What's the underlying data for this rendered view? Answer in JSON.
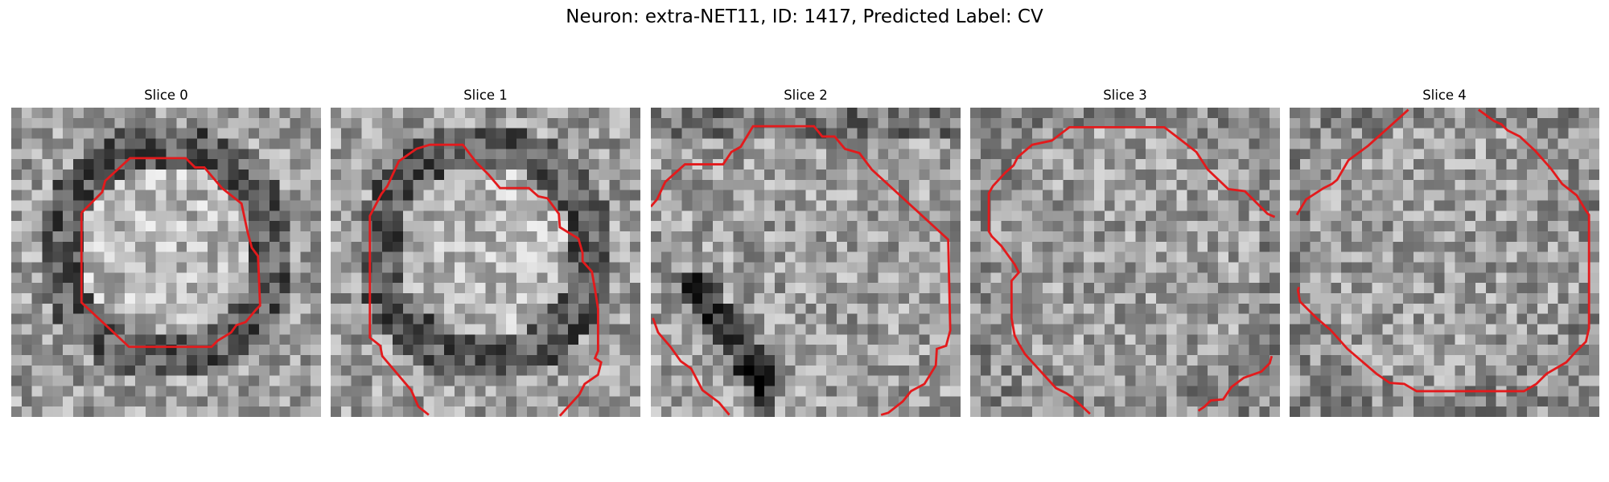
{
  "title": "Neuron: extra-NET11, ID: 1417, Predicted Label: CV",
  "panels": [
    {
      "title": "Slice 0",
      "contour_color": "#e31a1c",
      "seed": 17,
      "pattern": "ring"
    },
    {
      "title": "Slice 1",
      "contour_color": "#e31a1c",
      "seed": 29,
      "pattern": "ring"
    },
    {
      "title": "Slice 2",
      "contour_color": "#e31a1c",
      "seed": 41,
      "pattern": "edge"
    },
    {
      "title": "Slice 3",
      "contour_color": "#e31a1c",
      "seed": 53,
      "pattern": "flat"
    },
    {
      "title": "Slice 4",
      "contour_color": "#e31a1c",
      "seed": 67,
      "pattern": "flat"
    }
  ]
}
